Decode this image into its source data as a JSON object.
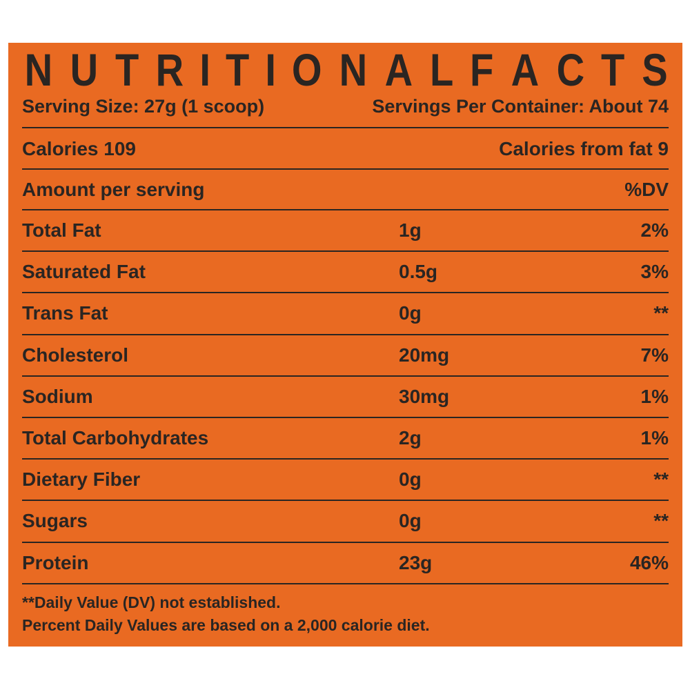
{
  "title": "NUTRITIONALFACTS",
  "serving_size": "Serving Size: 27g (1 scoop)",
  "servings_per_container": "Servings Per Container: About 74",
  "calories": "Calories 109",
  "calories_from_fat": "Calories from fat 9",
  "amount_header": "Amount per serving",
  "dv_header": "%DV",
  "nutrients": [
    {
      "name": "Total Fat",
      "amount": "1g",
      "dv": "2%"
    },
    {
      "name": "Saturated Fat",
      "amount": "0.5g",
      "dv": "3%"
    },
    {
      "name": "Trans Fat",
      "amount": "0g",
      "dv": "**"
    },
    {
      "name": "Cholesterol",
      "amount": "20mg",
      "dv": "7%"
    },
    {
      "name": "Sodium",
      "amount": "30mg",
      "dv": "1%"
    },
    {
      "name": "Total Carbohydrates",
      "amount": "2g",
      "dv": "1%"
    },
    {
      "name": "Dietary Fiber",
      "amount": "0g",
      "dv": "**"
    },
    {
      "name": "Sugars",
      "amount": "0g",
      "dv": "**"
    },
    {
      "name": "Protein",
      "amount": "23g",
      "dv": "46%"
    }
  ],
  "footnotes": [
    "**Daily Value (DV) not established.",
    "Percent Daily Values are based on a 2,000 calorie diet."
  ],
  "colors": {
    "background": "#E96A22",
    "text": "#2a2522"
  }
}
